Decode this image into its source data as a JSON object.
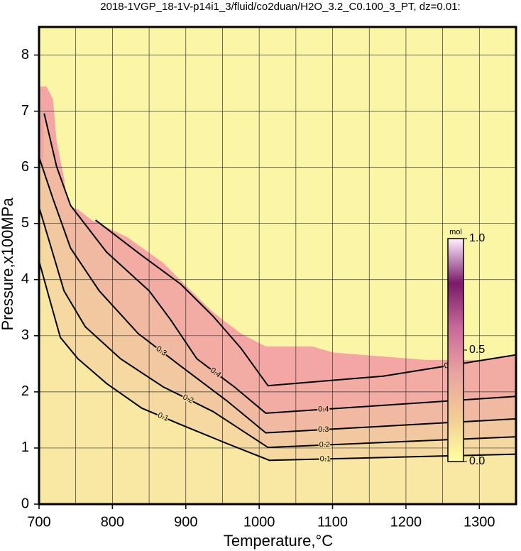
{
  "chart_data": {
    "type": "contour",
    "title": "2018-1VGP_18-1V-p14i1_3/fluid/co2duan/H2O_3.2_C0.100_3_PT, dz=0.01:",
    "x_label": "Temperature,°C",
    "y_label": "Pressure,x100MPa",
    "xlim": [
      700,
      1350
    ],
    "ylim": [
      0,
      8.5
    ],
    "xticks": [
      700,
      800,
      900,
      1000,
      1100,
      1200,
      1300
    ],
    "yticks": [
      0,
      1,
      2,
      3,
      4,
      5,
      6,
      7,
      8
    ],
    "xgrid": [
      700,
      750,
      800,
      850,
      900,
      950,
      1000,
      1050,
      1100,
      1150,
      1200,
      1250,
      1300,
      1350
    ],
    "ygrid": [
      0,
      1,
      2,
      3,
      4,
      5,
      6,
      7,
      8
    ],
    "grid": true,
    "background_color": "#fbf6a6",
    "field_boundary": {
      "color": "#f4a6a4",
      "x": [
        700,
        710,
        719,
        724,
        734,
        739,
        753,
        772,
        821,
        869,
        898,
        937,
        975,
        1009,
        1072,
        1101,
        1227,
        1350
      ],
      "y": [
        7.44,
        7.44,
        7.22,
        6.46,
        5.82,
        5.32,
        5.25,
        5.06,
        4.75,
        4.3,
        3.92,
        3.42,
        3.04,
        2.81,
        2.81,
        2.7,
        2.57,
        2.57
      ]
    },
    "series": [
      {
        "level": 0.1,
        "color": "#f8e8a4",
        "x": [
          700,
          714,
          729,
          753,
          792,
          840,
          898,
          956,
          1014,
          1350
        ],
        "y": [
          4.33,
          3.67,
          2.97,
          2.59,
          2.15,
          1.71,
          1.39,
          1.08,
          0.78,
          0.89
        ]
      },
      {
        "level": 0.2,
        "color": "#f5d9a0",
        "x": [
          700,
          714,
          734,
          763,
          811,
          869,
          937,
          1012,
          1350
        ],
        "y": [
          5.29,
          4.68,
          3.8,
          3.16,
          2.59,
          2.09,
          1.65,
          1.01,
          1.2
        ]
      },
      {
        "level": 0.3,
        "color": "#f2c8a0",
        "x": [
          700,
          719,
          743,
          782,
          835,
          898,
          956,
          1009,
          1350
        ],
        "y": [
          6.18,
          5.44,
          4.56,
          3.8,
          3.04,
          2.41,
          1.84,
          1.27,
          1.52
        ]
      },
      {
        "level": 0.4,
        "color": "#f2b9a2",
        "x": [
          707,
          724,
          743,
          792,
          850,
          879,
          915,
          966,
          1009,
          1350
        ],
        "y": [
          6.96,
          6.01,
          5.32,
          4.49,
          3.8,
          3.29,
          2.59,
          2.09,
          1.62,
          1.92
        ]
      },
      {
        "level": 0.5,
        "color": "#f3aca3",
        "x": [
          777,
          840,
          893,
          937,
          975,
          1012,
          1169,
          1350
        ],
        "y": [
          5.06,
          4.43,
          3.92,
          3.35,
          2.78,
          2.11,
          2.28,
          2.66
        ]
      }
    ],
    "colorbar": {
      "label": "mol",
      "lim": [
        0,
        1
      ],
      "ticks": [
        {
          "value": 0,
          "label": "0.0"
        },
        {
          "value": 0.5,
          "label": "0.5"
        },
        {
          "value": 1,
          "label": "1.0"
        }
      ],
      "colors": [
        "#ffffa0",
        "#f2cc96",
        "#e9a3a0",
        "#c86a9a",
        "#7a1a6a",
        "#fff0ff"
      ]
    }
  }
}
